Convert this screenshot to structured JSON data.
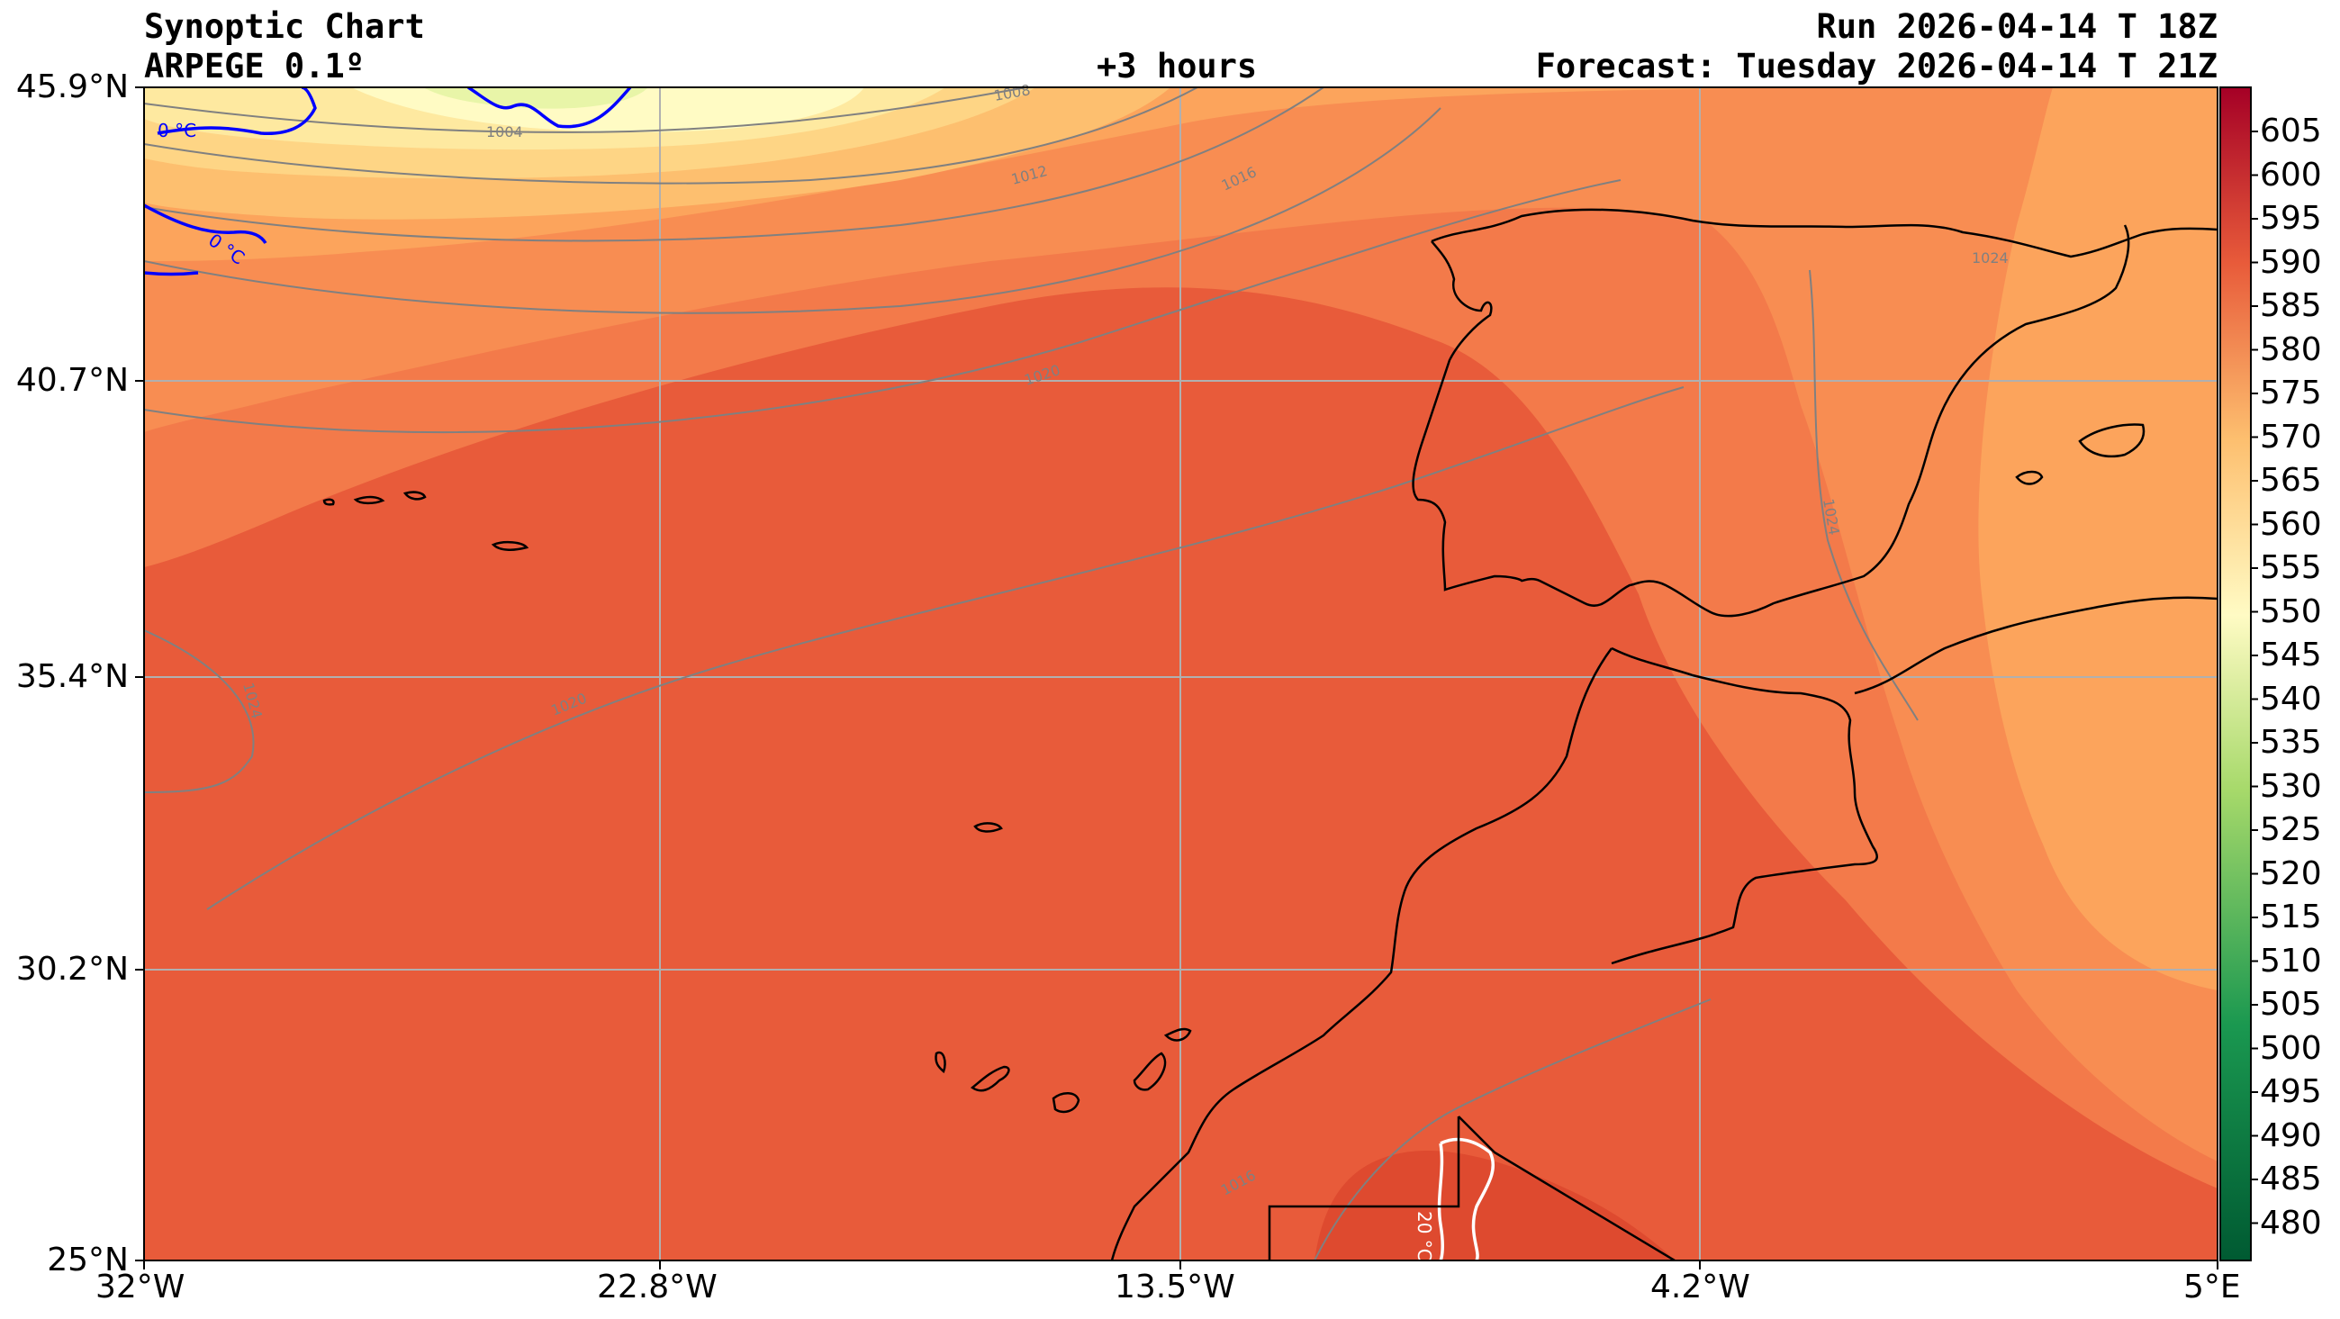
{
  "header": {
    "title": "Synoptic Chart",
    "model": "ARPEGE 0.1º",
    "lead": "+3 hours",
    "run": "Run 2026-04-14 T 18Z",
    "forecast": "Forecast: Tuesday 2026-04-14 T 21Z"
  },
  "axes": {
    "lat_labels": [
      "45.9°N",
      "40.7°N",
      "35.4°N",
      "30.2°N",
      "25°N"
    ],
    "lon_labels": [
      "32°W",
      "22.8°W",
      "13.5°W",
      "4.2°W",
      "5°E"
    ]
  },
  "colorbar": {
    "labels": [
      "605",
      "600",
      "595",
      "590",
      "585",
      "580",
      "575",
      "570",
      "565",
      "560",
      "555",
      "550",
      "545",
      "540",
      "535",
      "530",
      "525",
      "520",
      "515",
      "510",
      "505",
      "500",
      "495",
      "490",
      "485",
      "480"
    ]
  },
  "contour_labels": {
    "isobars": [
      "1004",
      "1008",
      "1012",
      "1016",
      "1020",
      "1024",
      "1020",
      "1024",
      "1024",
      "1016"
    ],
    "isotherms": [
      "0 °C",
      "0 °C",
      "20 °C"
    ]
  },
  "colors": {
    "c545": "#fffbc4",
    "c550": "#fee9a0",
    "c555": "#fed585",
    "c560": "#fdbf6f",
    "c565": "#fca45c",
    "c570": "#f88d52",
    "c575": "#f37a4a",
    "c580": "#e85b3a",
    "c585": "#de4a2f",
    "land_border": "#000000",
    "isotherm_cold": "#0000ff",
    "isotherm_warm": "#ffffff",
    "isobar": "#808080"
  }
}
